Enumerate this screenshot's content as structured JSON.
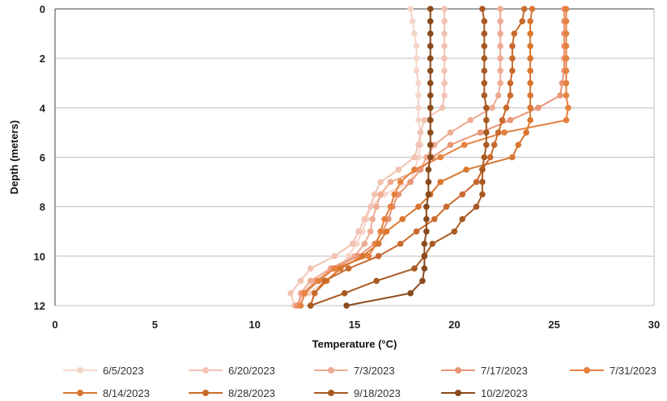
{
  "chart_data": {
    "type": "line",
    "title": "",
    "xlabel": "Temperature (°C)",
    "ylabel": "Depth (meters)",
    "xlim": [
      0,
      30
    ],
    "ylim": [
      0,
      12
    ],
    "y_inverted": true,
    "x_ticks": [
      0,
      5,
      10,
      15,
      20,
      25,
      30
    ],
    "y_ticks": [
      0,
      2,
      4,
      6,
      8,
      10,
      12
    ],
    "gridlines": "horizontal",
    "legend_position": "bottom",
    "x_axis_position": "top",
    "x_tick_labels_position": "bottom",
    "series": [
      {
        "name": "6/5/2023",
        "color": "#f5d5c8",
        "x": [
          17.8,
          17.9,
          18.0,
          18.1,
          18.1,
          18.1,
          18.2,
          18.2,
          18.2,
          18.2,
          18.3,
          18.3,
          18.2,
          18.0,
          17.8,
          16.5,
          15.8,
          15.6,
          15.4,
          15.1,
          14.7,
          14.2,
          13.6,
          12.7,
          12.1
        ],
        "y": [
          0,
          0.5,
          1,
          1.5,
          2,
          2.5,
          3,
          3.5,
          4,
          4.5,
          5,
          5.5,
          6,
          6.5,
          7,
          7.5,
          8,
          8.5,
          9,
          9.5,
          10,
          10.5,
          11,
          11.5,
          12
        ]
      },
      {
        "name": "6/20/2023",
        "color": "#f2c3b3",
        "x": [
          19.5,
          19.5,
          19.5,
          19.5,
          19.5,
          19.5,
          19.5,
          19.5,
          19.4,
          18.5,
          18.3,
          18.2,
          18.0,
          17.2,
          16.3,
          16.0,
          15.8,
          15.5,
          15.2,
          14.9,
          14.0,
          12.8,
          12.3,
          11.8,
          12.0
        ],
        "y": [
          0,
          0.5,
          1,
          1.5,
          2,
          2.5,
          3,
          3.5,
          4,
          4.5,
          5,
          5.5,
          6,
          6.5,
          7,
          7.5,
          8,
          8.5,
          9,
          9.5,
          10,
          10.5,
          11,
          11.5,
          12
        ]
      },
      {
        "name": "7/3/2023",
        "color": "#eeab93",
        "x": [
          22.3,
          22.3,
          22.3,
          22.3,
          22.3,
          22.3,
          22.3,
          22.2,
          21.9,
          20.8,
          19.8,
          19.0,
          18.6,
          18.3,
          16.8,
          16.3,
          16.1,
          15.9,
          15.8,
          15.5,
          15.0,
          13.8,
          12.8,
          12.3,
          12.2
        ],
        "y": [
          0,
          0.5,
          1,
          1.5,
          2,
          2.5,
          3,
          3.5,
          4,
          4.5,
          5,
          5.5,
          6,
          6.5,
          7,
          7.5,
          8,
          8.5,
          9,
          9.5,
          10,
          10.5,
          11,
          11.5,
          12
        ]
      },
      {
        "name": "7/17/2023",
        "color": "#e99575",
        "x": [
          25.5,
          25.5,
          25.5,
          25.5,
          25.5,
          25.5,
          25.4,
          25.3,
          24.2,
          22.8,
          21.3,
          19.8,
          18.9,
          18.3,
          17.8,
          17.2,
          16.9,
          16.7,
          16.4,
          16.0,
          15.2,
          13.9,
          13.1,
          12.4,
          12.1
        ],
        "y": [
          0,
          0.5,
          1,
          1.5,
          2,
          2.5,
          3,
          3.5,
          4,
          4.5,
          5,
          5.5,
          6,
          6.5,
          7,
          7.5,
          8,
          8.5,
          9,
          9.5,
          10,
          10.5,
          11,
          11.5,
          12
        ]
      },
      {
        "name": "7/31/2023",
        "color": "#e5813f",
        "x": [
          25.6,
          25.6,
          25.6,
          25.6,
          25.6,
          25.6,
          25.6,
          25.6,
          25.7,
          25.6,
          22.5,
          20.5,
          19.3,
          18.0,
          17.3,
          17.0,
          16.8,
          16.5,
          16.3,
          16.1,
          15.7,
          14.0,
          13.2,
          12.5,
          12.3
        ],
        "y": [
          0,
          0.5,
          1,
          1.5,
          2,
          2.5,
          3,
          3.5,
          4,
          4.5,
          5,
          5.5,
          6,
          6.5,
          7,
          7.5,
          8,
          8.5,
          9,
          9.5,
          10,
          10.5,
          11,
          11.5,
          12
        ]
      },
      {
        "name": "8/14/2023",
        "color": "#d97730",
        "x": [
          23.9,
          23.8,
          23.8,
          23.8,
          23.8,
          23.8,
          23.8,
          23.8,
          23.8,
          23.8,
          23.6,
          23.2,
          22.9,
          20.6,
          19.3,
          18.8,
          18.2,
          17.4,
          16.6,
          16.2,
          15.4,
          14.3,
          13.6,
          13.0,
          12.8
        ],
        "y": [
          0,
          0.5,
          1,
          1.5,
          2,
          2.5,
          3,
          3.5,
          4,
          4.5,
          5,
          5.5,
          6,
          6.5,
          7,
          7.5,
          8,
          8.5,
          9,
          9.5,
          10,
          10.5,
          11,
          11.5,
          12
        ]
      },
      {
        "name": "8/28/2023",
        "color": "#c96a2d",
        "x": [
          23.5,
          23.4,
          23.0,
          22.9,
          22.9,
          22.9,
          22.8,
          22.8,
          22.6,
          22.4,
          22.2,
          22.0,
          21.8,
          21.4,
          21.1,
          20.4,
          19.6,
          19.0,
          18.1,
          17.3,
          16.2,
          14.7,
          13.5,
          13.0,
          12.8
        ],
        "y": [
          0,
          0.5,
          1,
          1.5,
          2,
          2.5,
          3,
          3.5,
          4,
          4.5,
          5,
          5.5,
          6,
          6.5,
          7,
          7.5,
          8,
          8.5,
          9,
          9.5,
          10,
          10.5,
          11,
          11.5,
          12
        ]
      },
      {
        "name": "9/18/2023",
        "color": "#a95a22",
        "x": [
          21.4,
          21.5,
          21.5,
          21.5,
          21.5,
          21.5,
          21.5,
          21.5,
          21.6,
          21.6,
          21.6,
          21.6,
          21.5,
          21.4,
          21.4,
          21.4,
          21.1,
          20.4,
          20.0,
          18.9,
          18.5,
          18.0,
          16.1,
          14.5,
          12.8
        ],
        "y": [
          0,
          0.5,
          1,
          1.5,
          2,
          2.5,
          3,
          3.5,
          4,
          4.5,
          5,
          5.5,
          6,
          6.5,
          7,
          7.5,
          8,
          8.5,
          9,
          9.5,
          10,
          10.5,
          11,
          11.5,
          12
        ]
      },
      {
        "name": "10/2/2023",
        "color": "#8a4a1c",
        "x": [
          18.8,
          18.8,
          18.8,
          18.8,
          18.8,
          18.8,
          18.8,
          18.8,
          18.8,
          18.8,
          18.8,
          18.8,
          18.8,
          18.7,
          18.7,
          18.7,
          18.6,
          18.6,
          18.6,
          18.5,
          18.5,
          18.5,
          18.4,
          17.8,
          14.6
        ],
        "y": [
          0,
          0.5,
          1,
          1.5,
          2,
          2.5,
          3,
          3.5,
          4,
          4.5,
          5,
          5.5,
          6,
          6.5,
          7,
          7.5,
          8,
          8.5,
          9,
          9.5,
          10,
          10.5,
          11,
          11.5,
          12
        ]
      }
    ]
  }
}
